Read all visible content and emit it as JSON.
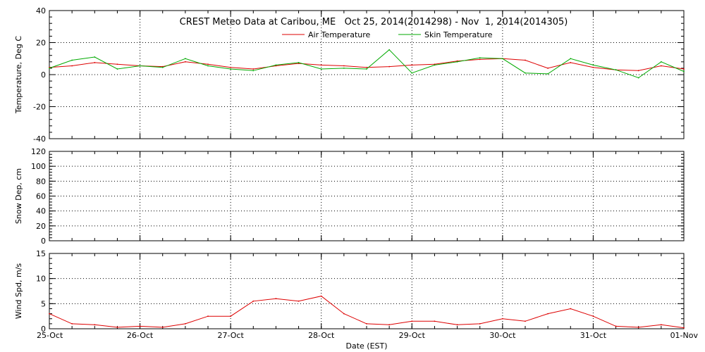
{
  "title": "CREST Meteo Data at Caribou, ME   Oct 25, 2014(2014298) - Nov  1, 2014(2014305)",
  "x_axis": {
    "label": "Date (EST)",
    "tick_labels": [
      "25-Oct",
      "26-Oct",
      "27-Oct",
      "28-Oct",
      "29-Oct",
      "30-Oct",
      "31-Oct",
      "01-Nov"
    ],
    "start": "2014-10-25",
    "end": "2014-11-01"
  },
  "colors": {
    "air": "#dd0000",
    "skin": "#00aa00",
    "wind": "#dd0000"
  },
  "chart_data": [
    {
      "type": "line",
      "ylabel": "Temperature, Deg C",
      "ylim": [
        -40,
        40
      ],
      "yticks": [
        -40,
        -20,
        0,
        20,
        40
      ],
      "grid": true,
      "legend_position": "top-center",
      "series": [
        {
          "name": "Air Temperature",
          "color": "#dd0000",
          "x": [
            "2014-10-25T00:00",
            "2014-10-25T06:00",
            "2014-10-25T12:00",
            "2014-10-25T18:00",
            "2014-10-26T00:00",
            "2014-10-26T06:00",
            "2014-10-26T12:00",
            "2014-10-26T18:00",
            "2014-10-27T00:00",
            "2014-10-27T06:00",
            "2014-10-27T12:00",
            "2014-10-27T18:00",
            "2014-10-28T00:00",
            "2014-10-28T06:00",
            "2014-10-28T12:00",
            "2014-10-28T18:00",
            "2014-10-29T00:00",
            "2014-10-29T06:00",
            "2014-10-29T12:00",
            "2014-10-29T18:00",
            "2014-10-30T00:00",
            "2014-10-30T06:00",
            "2014-10-30T12:00",
            "2014-10-30T18:00",
            "2014-10-31T00:00",
            "2014-10-31T06:00",
            "2014-10-31T12:00",
            "2014-10-31T18:00",
            "2014-11-01T00:00"
          ],
          "values": [
            4.5,
            5.5,
            7.5,
            6.5,
            5.5,
            5.0,
            8.0,
            6.5,
            4.5,
            3.5,
            5.5,
            7.0,
            6.0,
            5.5,
            4.5,
            5.0,
            6.0,
            6.5,
            8.5,
            9.5,
            10.0,
            9.0,
            4.0,
            7.5,
            4.5,
            3.0,
            2.5,
            5.5,
            3.5
          ]
        },
        {
          "name": "Skin Temperature",
          "color": "#00aa00",
          "x": [
            "2014-10-25T00:00",
            "2014-10-25T06:00",
            "2014-10-25T12:00",
            "2014-10-25T18:00",
            "2014-10-26T00:00",
            "2014-10-26T06:00",
            "2014-10-26T12:00",
            "2014-10-26T18:00",
            "2014-10-27T00:00",
            "2014-10-27T06:00",
            "2014-10-27T12:00",
            "2014-10-27T18:00",
            "2014-10-28T00:00",
            "2014-10-28T06:00",
            "2014-10-28T12:00",
            "2014-10-28T18:00",
            "2014-10-29T00:00",
            "2014-10-29T06:00",
            "2014-10-29T12:00",
            "2014-10-29T18:00",
            "2014-10-30T00:00",
            "2014-10-30T06:00",
            "2014-10-30T12:00",
            "2014-10-30T18:00",
            "2014-10-31T00:00",
            "2014-10-31T06:00",
            "2014-10-31T12:00",
            "2014-10-31T18:00",
            "2014-11-01T00:00"
          ],
          "values": [
            4.0,
            9.0,
            11.0,
            3.5,
            5.5,
            4.5,
            10.0,
            5.5,
            3.5,
            2.5,
            6.0,
            7.5,
            3.5,
            4.0,
            3.5,
            15.5,
            1.0,
            6.0,
            8.0,
            10.5,
            10.0,
            1.0,
            0.5,
            10.0,
            6.0,
            3.0,
            -2.0,
            8.0,
            2.0
          ]
        }
      ]
    },
    {
      "type": "line",
      "ylabel": "Snow Dep, cm",
      "ylim": [
        0,
        120
      ],
      "yticks": [
        0,
        20,
        40,
        60,
        80,
        100,
        120
      ],
      "grid": true,
      "series": []
    },
    {
      "type": "line",
      "ylabel": "Wind Spd, m/s",
      "ylim": [
        0,
        15
      ],
      "yticks": [
        0,
        5,
        10,
        15
      ],
      "grid": true,
      "series": [
        {
          "color": "#dd0000",
          "x": [
            "2014-10-25T00:00",
            "2014-10-25T06:00",
            "2014-10-25T12:00",
            "2014-10-25T18:00",
            "2014-10-26T00:00",
            "2014-10-26T06:00",
            "2014-10-26T12:00",
            "2014-10-26T18:00",
            "2014-10-27T00:00",
            "2014-10-27T06:00",
            "2014-10-27T12:00",
            "2014-10-27T18:00",
            "2014-10-28T00:00",
            "2014-10-28T06:00",
            "2014-10-28T12:00",
            "2014-10-28T18:00",
            "2014-10-29T00:00",
            "2014-10-29T06:00",
            "2014-10-29T12:00",
            "2014-10-29T18:00",
            "2014-10-30T00:00",
            "2014-10-30T06:00",
            "2014-10-30T12:00",
            "2014-10-30T18:00",
            "2014-10-31T00:00",
            "2014-10-31T06:00",
            "2014-10-31T12:00",
            "2014-10-31T18:00",
            "2014-11-01T00:00"
          ],
          "values": [
            3.0,
            1.0,
            0.8,
            0.3,
            0.5,
            0.3,
            1.0,
            2.5,
            2.5,
            5.5,
            6.0,
            5.5,
            6.5,
            3.0,
            1.0,
            0.8,
            1.5,
            1.5,
            0.8,
            1.0,
            2.0,
            1.5,
            3.0,
            4.0,
            2.5,
            0.5,
            0.3,
            0.8,
            0.2
          ]
        }
      ]
    }
  ]
}
